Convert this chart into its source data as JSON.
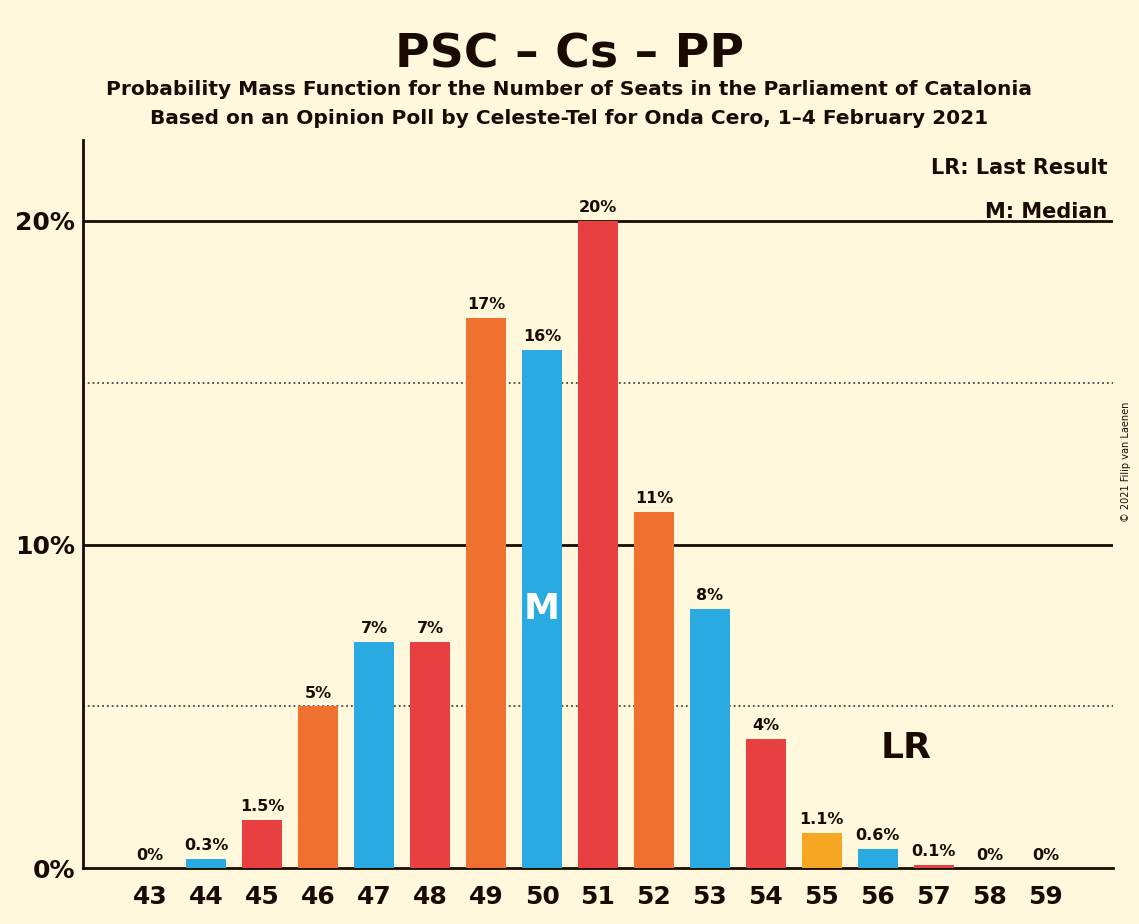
{
  "title": "PSC – Cs – PP",
  "subtitle1": "Probability Mass Function for the Number of Seats in the Parliament of Catalonia",
  "subtitle2": "Based on an Opinion Poll by Celeste-Tel for Onda Cero, 1–4 February 2021",
  "copyright": "© 2021 Filip van Laenen",
  "seats": [
    43,
    44,
    45,
    46,
    47,
    48,
    49,
    50,
    51,
    52,
    53,
    54,
    55,
    56,
    57,
    58,
    59
  ],
  "pmf_values": [
    0.0,
    0.3,
    0.0,
    0.0,
    7.0,
    0.0,
    0.0,
    16.0,
    0.0,
    0.0,
    8.0,
    0.0,
    0.0,
    0.6,
    0.1,
    0.0,
    0.0
  ],
  "lr_values": [
    0.0,
    0.0,
    1.5,
    5.0,
    0.0,
    7.0,
    17.0,
    0.0,
    20.0,
    11.0,
    0.0,
    4.0,
    1.1,
    0.0,
    0.0,
    0.0,
    0.0
  ],
  "pmf_labels": [
    "0%",
    "0.3%",
    "",
    "",
    "7%",
    "",
    "",
    "16%",
    "",
    "",
    "8%",
    "",
    "",
    "0.6%",
    "0.1%",
    "0%",
    "0%"
  ],
  "lr_labels": [
    "",
    "",
    "1.5%",
    "5%",
    "",
    "7%",
    "17%",
    "",
    "20%",
    "11%",
    "",
    "4%",
    "1.1%",
    "",
    "",
    "",
    ""
  ],
  "pmf_color": "#29ABE2",
  "lr_color_red": "#E84040",
  "lr_color_orange": "#F07030",
  "lr_marker_color": "#F5A623",
  "median_seat": 50,
  "lr_seat": 55,
  "background_color": "#FFF8DC",
  "text_color": "#1A0A00",
  "ytick_values": [
    0,
    10,
    20
  ],
  "ytick_dotted": [
    5,
    15
  ],
  "ylim": [
    0,
    22.5
  ],
  "legend_lr": "LR: Last Result",
  "legend_m": "M: Median",
  "bar_colors": [
    "#E84040",
    "#29ABE2",
    "#E84040",
    "#F07030",
    "#29ABE2",
    "#E84040",
    "#F07030",
    "#29ABE2",
    "#E84040",
    "#F07030",
    "#29ABE2",
    "#E84040",
    "#F5A623",
    "#29ABE2",
    "#E84040",
    "#29ABE2",
    "#E84040"
  ],
  "bar_values": [
    0.0,
    0.3,
    1.5,
    5.0,
    7.0,
    7.0,
    17.0,
    16.0,
    20.0,
    11.0,
    8.0,
    4.0,
    1.1,
    0.6,
    0.1,
    0.0,
    0.0
  ],
  "bar_labels": [
    "0%",
    "0.3%",
    "1.5%",
    "5%",
    "7%",
    "7%",
    "17%",
    "16%",
    "20%",
    "11%",
    "8%",
    "4%",
    "1.1%",
    "0.6%",
    "0.1%",
    "0%",
    "0%"
  ]
}
